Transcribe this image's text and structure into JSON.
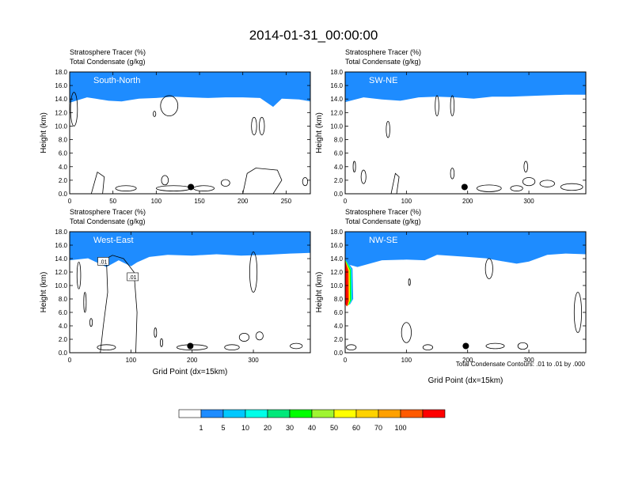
{
  "figure": {
    "title": "2014-01-31_00:00:00",
    "contour_note": "Total Condensate Contours: .01 to .01 by .000",
    "contour_label": ".01"
  },
  "colorbar": {
    "colors": [
      "#ffffff",
      "#1e8cff",
      "#00c8ff",
      "#00ffe8",
      "#00e87a",
      "#00ff00",
      "#9ff531",
      "#ffff00",
      "#ffd200",
      "#ffa000",
      "#ff5a00",
      "#ff0000"
    ],
    "labels": [
      "1",
      "5",
      "10",
      "20",
      "30",
      "40",
      "50",
      "60",
      "70",
      "100"
    ]
  },
  "chart_data": [
    {
      "type": "heatmap",
      "panel": "South-North",
      "title": "Stratosphere Tracer   (%)",
      "subtitle": "Total Condensate   (g/kg)",
      "label": "South-North",
      "ylabel": "Height (km)",
      "xlabel": "",
      "xlim": [
        0,
        278
      ],
      "ylim": [
        0,
        18
      ],
      "xticks": [
        0,
        50,
        100,
        150,
        200,
        250
      ],
      "yticks": [
        "0.0",
        "2.0",
        "4.0",
        "6.0",
        "8.0",
        "10.0",
        "12.0",
        "14.0",
        "16.0",
        "18.0"
      ],
      "marker": {
        "x": 140,
        "y": 1.0
      },
      "tracer_base_km": [
        [
          0,
          14.2
        ],
        [
          20,
          15.0
        ],
        [
          30,
          14.8
        ],
        [
          45,
          14.5
        ],
        [
          60,
          14.4
        ],
        [
          80,
          14.8
        ],
        [
          100,
          14.9
        ],
        [
          120,
          15.1
        ],
        [
          140,
          15.0
        ],
        [
          160,
          14.9
        ],
        [
          180,
          15.0
        ],
        [
          200,
          15.0
        ],
        [
          220,
          14.9
        ],
        [
          235,
          13.6
        ],
        [
          245,
          14.8
        ],
        [
          265,
          14.7
        ],
        [
          278,
          14.4
        ]
      ],
      "contours": [
        {
          "shape": "ellipse",
          "cx": 5,
          "cy": 12.5,
          "rx": 4,
          "ry": 2.5
        },
        {
          "shape": "ellipse",
          "cx": 115,
          "cy": 13.0,
          "rx": 10,
          "ry": 1.5
        },
        {
          "shape": "ellipse",
          "cx": 213,
          "cy": 10.0,
          "rx": 3,
          "ry": 1.3
        },
        {
          "shape": "ellipse",
          "cx": 222,
          "cy": 10.0,
          "rx": 3,
          "ry": 1.3
        },
        {
          "shape": "ellipse",
          "cx": 98,
          "cy": 11.8,
          "rx": 1.5,
          "ry": 0.4
        },
        {
          "shape": "ellipse",
          "cx": 110,
          "cy": 2.0,
          "rx": 4,
          "ry": 0.7
        },
        {
          "shape": "ellipse",
          "cx": 65,
          "cy": 0.8,
          "rx": 12,
          "ry": 0.4
        },
        {
          "shape": "ellipse",
          "cx": 120,
          "cy": 0.8,
          "rx": 20,
          "ry": 0.4
        },
        {
          "shape": "ellipse",
          "cx": 155,
          "cy": 0.8,
          "rx": 12,
          "ry": 0.4
        },
        {
          "shape": "ellipse",
          "cx": 180,
          "cy": 1.6,
          "rx": 5,
          "ry": 0.5
        },
        {
          "shape": "ellipse",
          "cx": 272,
          "cy": 1.8,
          "rx": 3,
          "ry": 0.6
        },
        {
          "shape": "poly",
          "pts": [
            [
              25,
              0
            ],
            [
              32,
              3.2
            ],
            [
              40,
              2.5
            ],
            [
              38,
              0
            ]
          ]
        },
        {
          "shape": "poly",
          "pts": [
            [
              200,
              0
            ],
            [
              205,
              3.0
            ],
            [
              215,
              3.8
            ],
            [
              240,
              3.5
            ],
            [
              245,
              2.0
            ],
            [
              235,
              0
            ]
          ]
        }
      ]
    },
    {
      "type": "heatmap",
      "panel": "SW-NE",
      "title": "Stratosphere Tracer   (%)",
      "subtitle": "Total Condensate   (g/kg)",
      "label": "SW-NE",
      "ylabel": "Height (km)",
      "xlabel": "",
      "xlim": [
        0,
        393
      ],
      "ylim": [
        0,
        18
      ],
      "xticks": [
        0,
        100,
        200,
        300
      ],
      "yticks": [
        "0.0",
        "2.0",
        "4.0",
        "6.0",
        "8.0",
        "10.0",
        "12.0",
        "14.0",
        "16.0",
        "18.0"
      ],
      "marker": {
        "x": 195,
        "y": 1.0
      },
      "tracer_base_km": [
        [
          0,
          14.3
        ],
        [
          30,
          15.0
        ],
        [
          60,
          14.7
        ],
        [
          90,
          14.5
        ],
        [
          120,
          15.0
        ],
        [
          150,
          15.1
        ],
        [
          180,
          15.0
        ],
        [
          210,
          14.8
        ],
        [
          240,
          15.1
        ],
        [
          270,
          15.1
        ],
        [
          300,
          15.2
        ],
        [
          330,
          15.3
        ],
        [
          360,
          15.4
        ],
        [
          393,
          15.4
        ]
      ],
      "contours": [
        {
          "shape": "ellipse",
          "cx": 150,
          "cy": 13.0,
          "rx": 3,
          "ry": 1.5
        },
        {
          "shape": "ellipse",
          "cx": 175,
          "cy": 13.0,
          "rx": 3,
          "ry": 1.5
        },
        {
          "shape": "ellipse",
          "cx": 70,
          "cy": 9.5,
          "rx": 3,
          "ry": 1.2
        },
        {
          "shape": "ellipse",
          "cx": 15,
          "cy": 4.0,
          "rx": 2,
          "ry": 0.8
        },
        {
          "shape": "ellipse",
          "cx": 30,
          "cy": 2.5,
          "rx": 4,
          "ry": 1.0
        },
        {
          "shape": "ellipse",
          "cx": 175,
          "cy": 3.0,
          "rx": 3,
          "ry": 0.8
        },
        {
          "shape": "ellipse",
          "cx": 295,
          "cy": 4.0,
          "rx": 3,
          "ry": 0.8
        },
        {
          "shape": "ellipse",
          "cx": 300,
          "cy": 1.8,
          "rx": 10,
          "ry": 0.6
        },
        {
          "shape": "ellipse",
          "cx": 330,
          "cy": 1.5,
          "rx": 12,
          "ry": 0.5
        },
        {
          "shape": "ellipse",
          "cx": 235,
          "cy": 0.8,
          "rx": 20,
          "ry": 0.5
        },
        {
          "shape": "ellipse",
          "cx": 280,
          "cy": 0.8,
          "rx": 10,
          "ry": 0.4
        },
        {
          "shape": "ellipse",
          "cx": 370,
          "cy": 1.0,
          "rx": 18,
          "ry": 0.5
        },
        {
          "shape": "poly",
          "pts": [
            [
              75,
              0
            ],
            [
              82,
              3.0
            ],
            [
              88,
              2.5
            ],
            [
              84,
              0
            ]
          ]
        }
      ]
    },
    {
      "type": "heatmap",
      "panel": "West-East",
      "title": "Stratosphere Tracer   (%)",
      "subtitle": "Total Condensate   (g/kg)",
      "label": "West-East",
      "ylabel": "Height (km)",
      "xlabel": "Grid Point (dx=15km)",
      "xlim": [
        0,
        393
      ],
      "ylim": [
        0,
        18
      ],
      "xticks": [
        0,
        100,
        200,
        300
      ],
      "yticks": [
        "0.0",
        "2.0",
        "4.0",
        "6.0",
        "8.0",
        "10.0",
        "12.0",
        "14.0",
        "16.0",
        "18.0"
      ],
      "marker": {
        "x": 197,
        "y": 1.0
      },
      "tracer_base_km": [
        [
          0,
          14.5
        ],
        [
          30,
          14.8
        ],
        [
          60,
          13.5
        ],
        [
          80,
          14.5
        ],
        [
          100,
          13.6
        ],
        [
          110,
          14.2
        ],
        [
          130,
          15.0
        ],
        [
          160,
          15.3
        ],
        [
          200,
          15.2
        ],
        [
          240,
          15.4
        ],
        [
          280,
          15.2
        ],
        [
          320,
          15.3
        ],
        [
          360,
          15.5
        ],
        [
          393,
          15.6
        ]
      ],
      "contours": [
        {
          "shape": "ellipse",
          "cx": 300,
          "cy": 12.0,
          "rx": 6,
          "ry": 3.0
        },
        {
          "shape": "ellipse",
          "cx": 15,
          "cy": 11.5,
          "rx": 3,
          "ry": 2.0
        },
        {
          "shape": "ellipse",
          "cx": 25,
          "cy": 7.5,
          "rx": 2,
          "ry": 1.5
        },
        {
          "shape": "ellipse",
          "cx": 35,
          "cy": 4.5,
          "rx": 2,
          "ry": 0.6
        },
        {
          "shape": "ellipse",
          "cx": 140,
          "cy": 3.0,
          "rx": 2,
          "ry": 0.7
        },
        {
          "shape": "ellipse",
          "cx": 150,
          "cy": 1.5,
          "rx": 2,
          "ry": 0.6
        },
        {
          "shape": "ellipse",
          "cx": 285,
          "cy": 2.3,
          "rx": 8,
          "ry": 0.6
        },
        {
          "shape": "ellipse",
          "cx": 310,
          "cy": 2.5,
          "rx": 6,
          "ry": 0.6
        },
        {
          "shape": "ellipse",
          "cx": 265,
          "cy": 0.8,
          "rx": 12,
          "ry": 0.4
        },
        {
          "shape": "ellipse",
          "cx": 370,
          "cy": 1.0,
          "rx": 10,
          "ry": 0.4
        },
        {
          "shape": "ellipse",
          "cx": 200,
          "cy": 0.8,
          "rx": 25,
          "ry": 0.4
        },
        {
          "shape": "ellipse",
          "cx": 60,
          "cy": 0.8,
          "rx": 15,
          "ry": 0.4
        },
        {
          "shape": "poly",
          "pts": [
            [
              50,
              0
            ],
            [
              55,
              4
            ],
            [
              62,
              9
            ],
            [
              60,
              14
            ],
            [
              70,
              14.5
            ],
            [
              88,
              14.0
            ],
            [
              105,
              12
            ],
            [
              110,
              6
            ],
            [
              108,
              0
            ]
          ]
        }
      ],
      "contour_tags": [
        {
          "x": 55,
          "y": 13.6
        },
        {
          "x": 103,
          "y": 11.3
        }
      ]
    },
    {
      "type": "heatmap",
      "panel": "NW-SE",
      "title": "Stratosphere Tracer   (%)",
      "subtitle": "Total Condensate   (g/kg)",
      "label": "NW-SE",
      "ylabel": "Height (km)",
      "xlabel": "Grid Point (dx=15km)",
      "xlim": [
        0,
        393
      ],
      "ylim": [
        0,
        18
      ],
      "xticks": [
        0,
        100,
        200,
        300
      ],
      "yticks": [
        "0.0",
        "2.0",
        "4.0",
        "6.0",
        "8.0",
        "10.0",
        "12.0",
        "14.0",
        "16.0",
        "18.0"
      ],
      "marker": {
        "x": 197,
        "y": 1.0
      },
      "tracer_base_km": [
        [
          0,
          14.0
        ],
        [
          20,
          13.5
        ],
        [
          40,
          14.0
        ],
        [
          60,
          14.5
        ],
        [
          100,
          14.6
        ],
        [
          130,
          14.5
        ],
        [
          150,
          15.3
        ],
        [
          200,
          15.0
        ],
        [
          230,
          14.8
        ],
        [
          260,
          14.3
        ],
        [
          280,
          14.0
        ],
        [
          300,
          14.3
        ],
        [
          330,
          15.3
        ],
        [
          360,
          15.5
        ],
        [
          393,
          15.4
        ]
      ],
      "streamer": [
        [
          0,
          14.0
        ],
        [
          12,
          12.5
        ],
        [
          13,
          8.0
        ],
        [
          8,
          7.2
        ],
        [
          0,
          7.6
        ]
      ],
      "contours": [
        {
          "shape": "ellipse",
          "cx": 235,
          "cy": 12.5,
          "rx": 6,
          "ry": 1.5
        },
        {
          "shape": "ellipse",
          "cx": 105,
          "cy": 10.5,
          "rx": 1.5,
          "ry": 0.5
        },
        {
          "shape": "ellipse",
          "cx": 100,
          "cy": 3.0,
          "rx": 8,
          "ry": 1.5
        },
        {
          "shape": "ellipse",
          "cx": 290,
          "cy": 1.0,
          "rx": 8,
          "ry": 0.5
        },
        {
          "shape": "ellipse",
          "cx": 245,
          "cy": 1.0,
          "rx": 15,
          "ry": 0.4
        },
        {
          "shape": "ellipse",
          "cx": 10,
          "cy": 0.8,
          "rx": 8,
          "ry": 0.4
        },
        {
          "shape": "ellipse",
          "cx": 135,
          "cy": 0.8,
          "rx": 8,
          "ry": 0.4
        },
        {
          "shape": "ellipse",
          "cx": 380,
          "cy": 6.0,
          "rx": 6,
          "ry": 3.0
        }
      ]
    }
  ]
}
